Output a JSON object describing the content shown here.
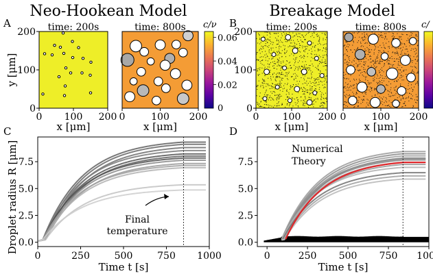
{
  "titles": {
    "left": "Neo-Hookean Model",
    "right": "Breakage Model"
  },
  "panel_labels": [
    "A",
    "B",
    "C",
    "D"
  ],
  "colormap_label": "c/ν",
  "colormap_label_right": "c/",
  "colormap_stops": [
    "#0d0887",
    "#5b02a3",
    "#9a179b",
    "#cb4678",
    "#eb7852",
    "#fbb32f",
    "#f0f921"
  ],
  "chart_data": [
    {
      "id": "A-200s",
      "type": "scatter",
      "title": "time: 200s",
      "xlabel": "x [μm]",
      "ylabel": "y [μm]",
      "xlim": [
        0,
        200
      ],
      "ylim": [
        0,
        200
      ],
      "xticks": [
        "0",
        "100",
        "200"
      ],
      "yticks": [
        "0",
        "100",
        "200"
      ],
      "background": "#eeee28",
      "droplets": [
        {
          "x": 70,
          "y": 196,
          "r": 1.8
        },
        {
          "x": 97,
          "y": 174,
          "r": 1.8
        },
        {
          "x": 45,
          "y": 164,
          "r": 1.8
        },
        {
          "x": 62,
          "y": 159,
          "r": 1.8
        },
        {
          "x": 115,
          "y": 158,
          "r": 1.8
        },
        {
          "x": 16,
          "y": 142,
          "r": 1.8
        },
        {
          "x": 72,
          "y": 143,
          "r": 1.8
        },
        {
          "x": 98,
          "y": 132,
          "r": 1.8
        },
        {
          "x": 38,
          "y": 139,
          "r": 1.8
        },
        {
          "x": 128,
          "y": 130,
          "r": 1.8
        },
        {
          "x": 151,
          "y": 120,
          "r": 1.8
        },
        {
          "x": 78,
          "y": 105,
          "r": 1.8
        },
        {
          "x": 92,
          "y": 92,
          "r": 1.8
        },
        {
          "x": 125,
          "y": 92,
          "r": 1.8
        },
        {
          "x": 58,
          "y": 82,
          "r": 1.8
        },
        {
          "x": 149,
          "y": 86,
          "r": 1.8
        },
        {
          "x": 76,
          "y": 58,
          "r": 1.8
        },
        {
          "x": 150,
          "y": 40,
          "r": 1.8
        },
        {
          "x": 74,
          "y": 33,
          "r": 1.8
        },
        {
          "x": 11,
          "y": 37,
          "r": 1.8
        }
      ]
    },
    {
      "id": "A-800s",
      "type": "scatter",
      "title": "time: 800s",
      "xlabel": "x [μm]",
      "ylabel": "",
      "xlim": [
        0,
        200
      ],
      "ylim": [
        0,
        200
      ],
      "xticks": [
        "0",
        "100",
        "200"
      ],
      "yticks": [],
      "background": "#f49c35",
      "droplets": [
        {
          "x": 36,
          "y": 162,
          "r": 8
        },
        {
          "x": 100,
          "y": 165,
          "r": 7
        },
        {
          "x": 142,
          "y": 166,
          "r": 6
        },
        {
          "x": 173,
          "y": 189,
          "r": 7,
          "shade": "#d0d0d0"
        },
        {
          "x": 14,
          "y": 126,
          "r": 9,
          "shade": "#a8a8a8"
        },
        {
          "x": 58,
          "y": 147,
          "r": 6
        },
        {
          "x": 75,
          "y": 122,
          "r": 5
        },
        {
          "x": 125,
          "y": 130,
          "r": 7,
          "shade": "#b0b0b0"
        },
        {
          "x": 160,
          "y": 145,
          "r": 6
        },
        {
          "x": 50,
          "y": 95,
          "r": 6
        },
        {
          "x": 113,
          "y": 112,
          "r": 7
        },
        {
          "x": 95,
          "y": 70,
          "r": 6
        },
        {
          "x": 140,
          "y": 90,
          "r": 7
        },
        {
          "x": 170,
          "y": 60,
          "r": 7
        },
        {
          "x": 30,
          "y": 70,
          "r": 5
        },
        {
          "x": 55,
          "y": 46,
          "r": 8,
          "shade": "#b8b8b8"
        },
        {
          "x": 115,
          "y": 52,
          "r": 6
        },
        {
          "x": 20,
          "y": 30,
          "r": 7
        },
        {
          "x": 160,
          "y": 25,
          "r": 8,
          "shade": "#c8c8c8"
        },
        {
          "x": 90,
          "y": 20,
          "r": 6
        }
      ]
    },
    {
      "id": "B-200s",
      "type": "scatter",
      "title": "time: 200s",
      "xlabel": "x [μm]",
      "ylabel": "",
      "xlim": [
        0,
        200
      ],
      "ylim": [
        0,
        200
      ],
      "xticks": [
        "0",
        "100",
        "200"
      ],
      "yticks": [
        "0",
        "100",
        "200"
      ],
      "background": "#eeee28",
      "noise": true,
      "droplets": [
        {
          "x": 20,
          "y": 180,
          "r": 3
        },
        {
          "x": 90,
          "y": 185,
          "r": 4
        },
        {
          "x": 150,
          "y": 170,
          "r": 3
        },
        {
          "x": 50,
          "y": 140,
          "r": 3
        },
        {
          "x": 110,
          "y": 150,
          "r": 4
        },
        {
          "x": 170,
          "y": 130,
          "r": 3
        },
        {
          "x": 30,
          "y": 95,
          "r": 4
        },
        {
          "x": 80,
          "y": 105,
          "r": 3
        },
        {
          "x": 135,
          "y": 95,
          "r": 4
        },
        {
          "x": 185,
          "y": 85,
          "r": 3
        },
        {
          "x": 60,
          "y": 55,
          "r": 3
        },
        {
          "x": 115,
          "y": 50,
          "r": 4
        },
        {
          "x": 165,
          "y": 40,
          "r": 3
        },
        {
          "x": 25,
          "y": 25,
          "r": 3
        },
        {
          "x": 95,
          "y": 20,
          "r": 3
        },
        {
          "x": 150,
          "y": 15,
          "r": 4
        }
      ]
    },
    {
      "id": "B-800s",
      "type": "scatter",
      "title": "time: 800s",
      "xlabel": "x [μm]",
      "ylabel": "",
      "xlim": [
        0,
        200
      ],
      "ylim": [
        0,
        200
      ],
      "xticks": [
        "0",
        "100",
        "200"
      ],
      "yticks": [],
      "background": "#f49c35",
      "noise": true,
      "droplets": [
        {
          "x": 15,
          "y": 185,
          "r": 6,
          "shade": "#a8a8a8"
        },
        {
          "x": 80,
          "y": 180,
          "r": 7
        },
        {
          "x": 140,
          "y": 170,
          "r": 6
        },
        {
          "x": 185,
          "y": 175,
          "r": 5
        },
        {
          "x": 45,
          "y": 140,
          "r": 7,
          "shade": "#b0b0b0"
        },
        {
          "x": 110,
          "y": 135,
          "r": 5
        },
        {
          "x": 165,
          "y": 125,
          "r": 7
        },
        {
          "x": 20,
          "y": 100,
          "r": 6
        },
        {
          "x": 75,
          "y": 95,
          "r": 6,
          "shade": "#c0c0c0"
        },
        {
          "x": 130,
          "y": 90,
          "r": 8
        },
        {
          "x": 180,
          "y": 80,
          "r": 6
        },
        {
          "x": 50,
          "y": 55,
          "r": 7
        },
        {
          "x": 100,
          "y": 50,
          "r": 6,
          "shade": "#b8b8b8"
        },
        {
          "x": 155,
          "y": 45,
          "r": 6
        },
        {
          "x": 25,
          "y": 20,
          "r": 6
        },
        {
          "x": 85,
          "y": 15,
          "r": 7
        },
        {
          "x": 140,
          "y": 12,
          "r": 5
        }
      ]
    },
    {
      "id": "C",
      "type": "line",
      "xlabel": "Time t [s]",
      "ylabel": "Droplet radius R [μm]",
      "xlim": [
        0,
        1000
      ],
      "ylim": [
        -0.4,
        9.8
      ],
      "xticks": [
        0,
        250,
        500,
        750,
        1000
      ],
      "yticks": [
        0.0,
        2.5,
        5.0,
        7.5
      ],
      "final_temperature_time": 850,
      "annotation": "Final\ntemperature",
      "series": [
        {
          "final": 9.4,
          "gray": "#606060"
        },
        {
          "final": 9.2,
          "gray": "#686868"
        },
        {
          "final": 8.9,
          "gray": "#707070"
        },
        {
          "final": 8.6,
          "gray": "#7a7a7a"
        },
        {
          "final": 8.3,
          "gray": "#555555"
        },
        {
          "final": 8.1,
          "gray": "#606060"
        },
        {
          "final": 7.9,
          "gray": "#505050"
        },
        {
          "final": 7.7,
          "gray": "#8a8a8a"
        },
        {
          "final": 7.4,
          "gray": "#9a9a9a"
        },
        {
          "final": 7.2,
          "gray": "#a0a0a0"
        },
        {
          "final": 7.0,
          "gray": "#b0b0b0"
        },
        {
          "final": 5.4,
          "gray": "#c2c2c2"
        },
        {
          "final": 4.9,
          "gray": "#cccccc"
        }
      ]
    },
    {
      "id": "D",
      "type": "line",
      "xlabel": "Time t [s]",
      "ylabel": "",
      "xlim": [
        -60,
        1000
      ],
      "ylim": [
        -0.4,
        9.8
      ],
      "xticks": [
        0,
        250,
        500,
        750,
        1000
      ],
      "yticks": [
        0.0,
        2.5,
        5.0,
        7.5
      ],
      "final_temperature_time": 840,
      "legend": [
        {
          "label": "Numerical",
          "color": "#000000"
        },
        {
          "label": "Theory",
          "color": "#e0262a"
        }
      ],
      "series": [
        {
          "final": 8.6,
          "gray": "#9a9a9a"
        },
        {
          "final": 8.4,
          "gray": "#8a8a8a"
        },
        {
          "final": 8.2,
          "gray": "#a0a0a0"
        },
        {
          "final": 8.0,
          "gray": "#7a7a7a"
        },
        {
          "final": 7.9,
          "gray": "#909090"
        },
        {
          "final": 7.8,
          "gray": "#8a8a8a"
        },
        {
          "final": 7.6,
          "gray": "#a8a8a8"
        },
        {
          "final": 7.4,
          "gray": "#959595"
        },
        {
          "final": 7.1,
          "gray": "#b0b0b0"
        },
        {
          "final": 6.6,
          "gray": "#707070"
        },
        {
          "final": 6.3,
          "gray": "#a0a0a0"
        },
        {
          "final": 6.0,
          "gray": "#b8b8b8"
        }
      ],
      "theory_final": 7.75,
      "small_droplets_level": 0.5
    }
  ]
}
